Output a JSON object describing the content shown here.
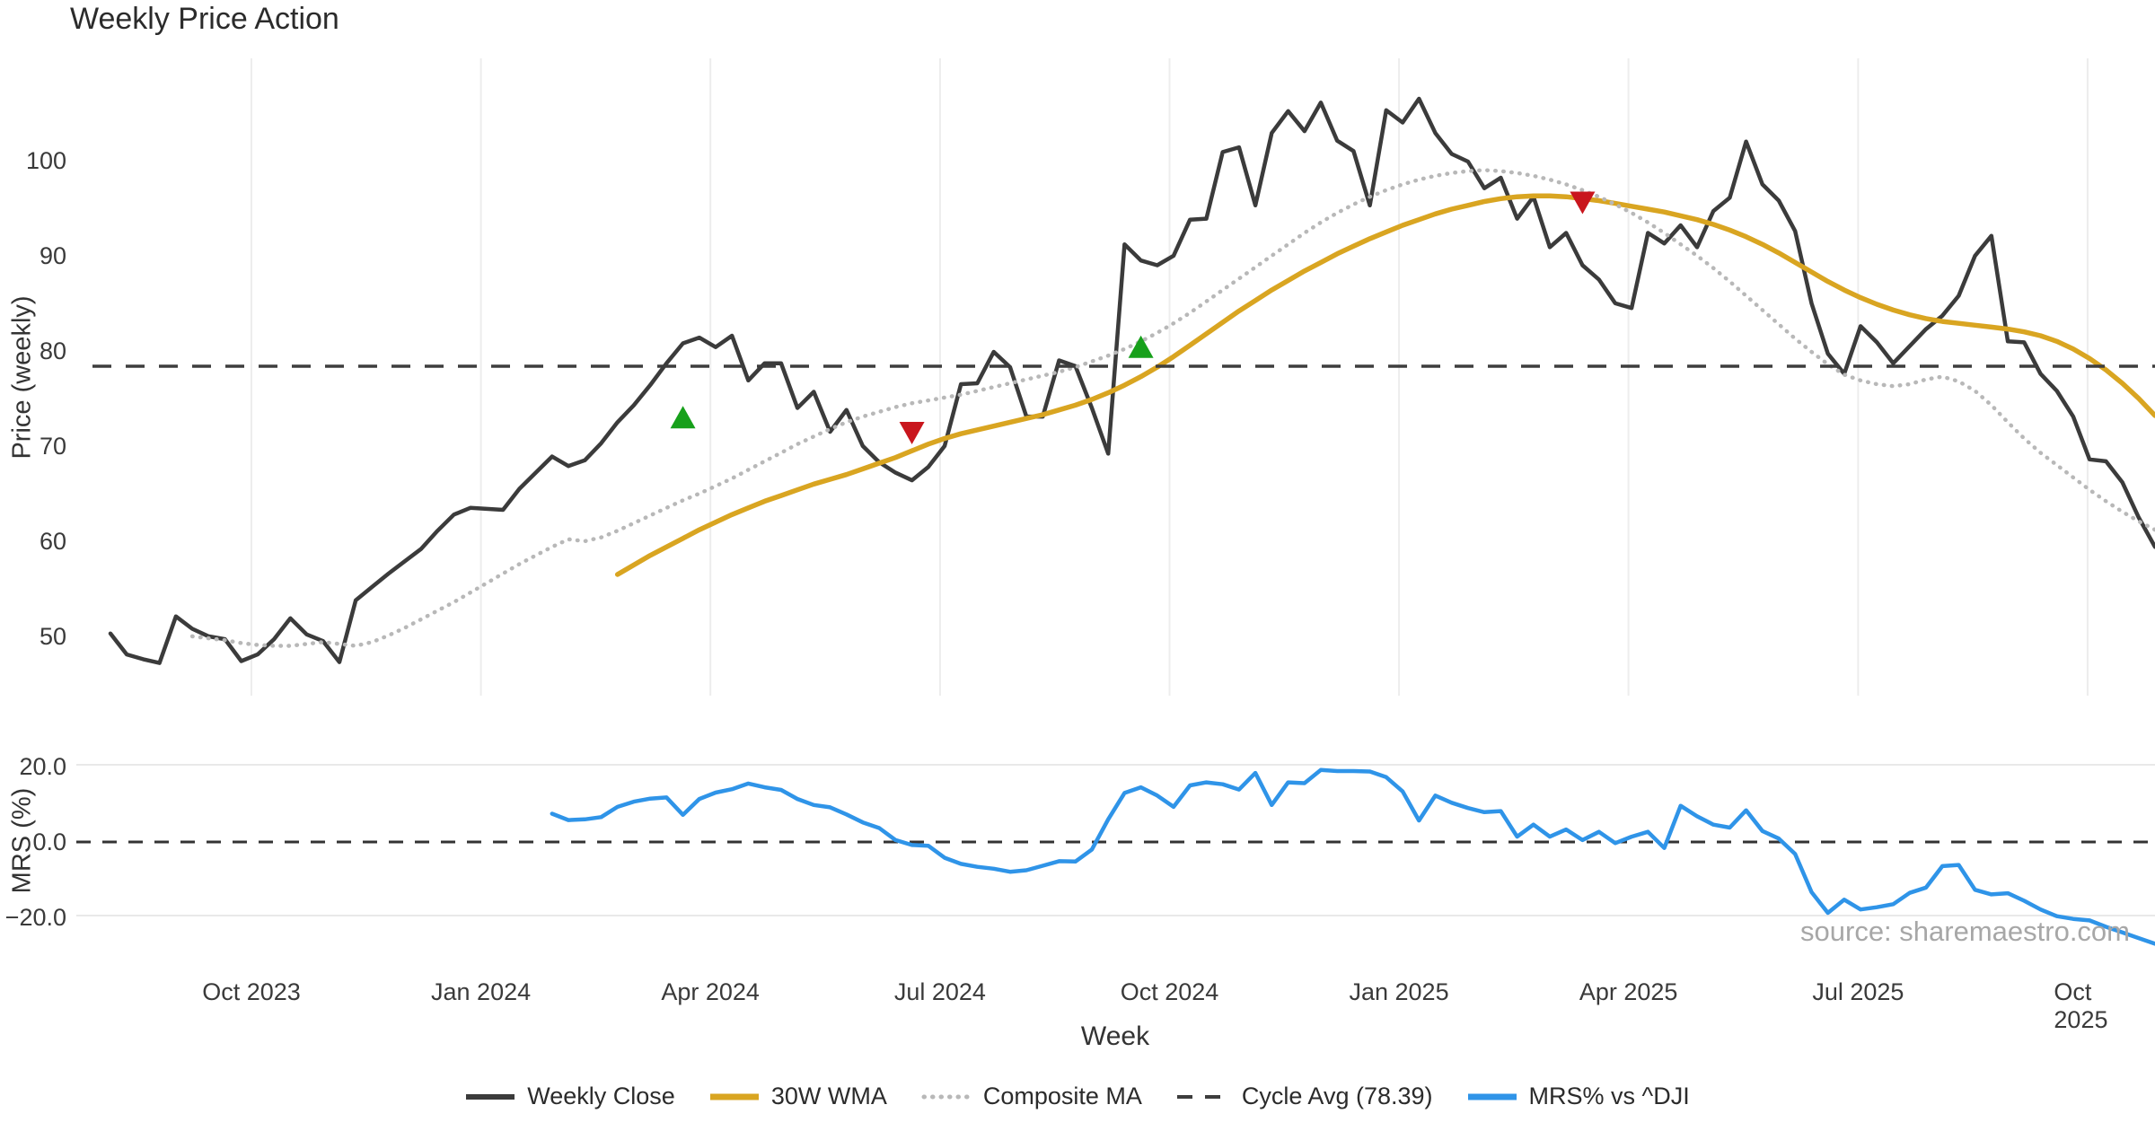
{
  "title": "Weekly Price Action",
  "source_note": "source: sharemaestro.com",
  "colors": {
    "close": "#3b3b3b",
    "wma": "#d9a521",
    "composite": "#b8b8b8",
    "cycle_avg": "#3d3d3d",
    "mrs": "#2f94e8",
    "buy_marker": "#17a01b",
    "sell_marker": "#c9161d",
    "gridline": "#ededed",
    "zero_line": "#333333"
  },
  "legend": {
    "items": [
      {
        "label": "Weekly Close",
        "swatch": "solid-dark"
      },
      {
        "label": "30W WMA",
        "swatch": "solid-gold"
      },
      {
        "label": "Composite MA",
        "swatch": "dotted-gray"
      },
      {
        "label": "Cycle Avg (78.39)",
        "swatch": "dashed-dark"
      },
      {
        "label": "MRS% vs ^DJI",
        "swatch": "solid-blue"
      }
    ]
  },
  "chart_data": {
    "type": "line",
    "title": "Weekly Price Action",
    "xlabel": "Week",
    "x_unit": "week_index",
    "x_ticks": [
      {
        "label": "Oct 2023",
        "index": 8.62
      },
      {
        "label": "Jan 2024",
        "index": 22.65
      },
      {
        "label": "Apr 2024",
        "index": 36.68
      },
      {
        "label": "Jul 2024",
        "index": 50.72
      },
      {
        "label": "Oct 2024",
        "index": 64.75
      },
      {
        "label": "Jan 2025",
        "index": 78.78
      },
      {
        "label": "Apr 2025",
        "index": 92.81
      },
      {
        "label": "Jul 2025",
        "index": 106.85
      },
      {
        "label": "Oct 2025",
        "index": 120.88
      }
    ],
    "panels": [
      {
        "name": "price",
        "ylabel": "Price (weekly)",
        "ylim": [
          22,
          110
        ],
        "y_ticks": [
          {
            "v": 50,
            "label": "50"
          },
          {
            "v": 60,
            "label": "60"
          },
          {
            "v": 70,
            "label": "70"
          },
          {
            "v": 80,
            "label": "80"
          },
          {
            "v": 90,
            "label": "90"
          },
          {
            "v": 100,
            "label": "100"
          }
        ],
        "grid": "vertical-only"
      },
      {
        "name": "mrs",
        "ylabel": "MRS (%)",
        "ylim": [
          -28,
          24
        ],
        "y_ticks": [
          {
            "v": 20,
            "label": "20.0"
          },
          {
            "v": 0,
            "label": "0.0"
          },
          {
            "v": -20,
            "label": "−20.0"
          }
        ],
        "grid": "horizontal-light",
        "zero_line_dashed": true
      }
    ],
    "cycle_avg": 78.39,
    "series": [
      {
        "name": "Weekly Close",
        "panel": 0,
        "style": "solid",
        "width": 4.5,
        "color_key": "close",
        "start_index": 0,
        "values": [
          50.3,
          48.1,
          47.6,
          47.2,
          52.1,
          50.8,
          50.0,
          49.7,
          47.4,
          48.1,
          49.7,
          51.9,
          50.2,
          49.5,
          47.3,
          53.8,
          55.2,
          56.6,
          57.9,
          59.2,
          61.1,
          62.8,
          63.5,
          63.4,
          63.3,
          65.5,
          67.2,
          68.9,
          67.9,
          68.5,
          70.3,
          72.5,
          74.3,
          76.4,
          78.7,
          80.8,
          81.4,
          80.4,
          81.6,
          76.9,
          78.7,
          78.7,
          74.0,
          75.7,
          71.5,
          73.8,
          70.0,
          68.3,
          67.2,
          66.4,
          67.8,
          70.0,
          76.5,
          76.6,
          79.9,
          78.3,
          73.1,
          73.1,
          79.0,
          78.4,
          74.0,
          69.2,
          91.2,
          89.5,
          89.0,
          90.0,
          93.8,
          93.9,
          100.9,
          101.4,
          95.3,
          102.9,
          105.2,
          103.1,
          106.1,
          102.1,
          101.0,
          95.3,
          105.3,
          104.0,
          106.5,
          102.9,
          100.7,
          99.9,
          97.1,
          98.2,
          93.9,
          96.2,
          90.9,
          92.4,
          89.0,
          87.5,
          85.0,
          84.5,
          92.4,
          91.3,
          93.2,
          90.9,
          94.7,
          96.1,
          102.0,
          97.5,
          95.8,
          92.6,
          85.0,
          79.7,
          77.6,
          82.6,
          80.9,
          78.7,
          80.5,
          82.3,
          83.7,
          85.8,
          90.0,
          92.1,
          81.0,
          80.9,
          77.6,
          75.8,
          73.1,
          68.6,
          68.4,
          66.2,
          62.5,
          59.4
        ]
      },
      {
        "name": "30W WMA",
        "panel": 0,
        "style": "solid",
        "width": 5.5,
        "color_key": "wma",
        "start_index": 31,
        "values": [
          56.5,
          57.5,
          58.5,
          59.4,
          60.3,
          61.2,
          62.0,
          62.8,
          63.5,
          64.2,
          64.8,
          65.4,
          66.0,
          66.5,
          67.0,
          67.6,
          68.2,
          68.8,
          69.5,
          70.2,
          70.8,
          71.3,
          71.7,
          72.1,
          72.5,
          72.9,
          73.3,
          73.8,
          74.3,
          74.9,
          75.6,
          76.4,
          77.3,
          78.3,
          79.4,
          80.6,
          81.8,
          83.0,
          84.2,
          85.3,
          86.4,
          87.4,
          88.4,
          89.3,
          90.2,
          91.0,
          91.8,
          92.5,
          93.2,
          93.8,
          94.4,
          94.9,
          95.3,
          95.7,
          96.0,
          96.2,
          96.3,
          96.3,
          96.2,
          96.0,
          95.8,
          95.5,
          95.2,
          94.9,
          94.6,
          94.2,
          93.8,
          93.3,
          92.7,
          92.0,
          91.2,
          90.3,
          89.3,
          88.3,
          87.3,
          86.4,
          85.6,
          84.9,
          84.3,
          83.8,
          83.4,
          83.1,
          82.9,
          82.7,
          82.5,
          82.3,
          82.0,
          81.6,
          81.0,
          80.2,
          79.2,
          78.0,
          76.6,
          75.0,
          73.2
        ]
      },
      {
        "name": "Composite MA",
        "panel": 0,
        "style": "dotted",
        "width": 4.5,
        "color_key": "composite",
        "start_index": 5,
        "values": [
          50.0,
          49.8,
          49.6,
          49.3,
          49.1,
          49.0,
          49.0,
          49.2,
          49.4,
          49.2,
          49.0,
          49.4,
          50.1,
          50.9,
          51.8,
          52.7,
          53.6,
          54.6,
          55.6,
          56.6,
          57.6,
          58.5,
          59.4,
          60.2,
          60.0,
          60.4,
          61.1,
          61.9,
          62.7,
          63.5,
          64.3,
          65.0,
          65.8,
          66.6,
          67.5,
          68.4,
          69.3,
          70.2,
          71.0,
          71.8,
          72.5,
          73.1,
          73.6,
          74.1,
          74.5,
          74.8,
          75.1,
          75.4,
          75.8,
          76.2,
          76.6,
          77.0,
          77.4,
          77.8,
          78.3,
          78.9,
          79.5,
          80.2,
          81.0,
          81.9,
          82.9,
          84.0,
          85.2,
          86.4,
          87.6,
          88.8,
          90.0,
          91.2,
          92.4,
          93.5,
          94.5,
          95.4,
          96.2,
          96.9,
          97.5,
          98.0,
          98.4,
          98.7,
          98.9,
          99.0,
          98.9,
          98.7,
          98.4,
          98.0,
          97.5,
          96.9,
          96.2,
          95.4,
          94.5,
          93.5,
          92.4,
          91.2,
          90.0,
          88.7,
          87.3,
          85.8,
          84.3,
          82.8,
          81.3,
          79.9,
          78.6,
          77.5,
          76.9,
          76.5,
          76.3,
          76.5,
          77.0,
          77.3,
          76.8,
          75.8,
          74.3,
          72.5,
          70.8,
          69.3,
          68.0,
          66.7,
          65.4,
          64.2,
          63.1,
          62.1,
          61.2
        ]
      },
      {
        "name": "Cycle Avg (78.39)",
        "panel": 0,
        "style": "dashed",
        "width": 3.5,
        "color_key": "cycle_avg",
        "constant": 78.39
      },
      {
        "name": "MRS% vs ^DJI",
        "panel": 1,
        "style": "solid",
        "width": 4.5,
        "color_key": "mrs",
        "start_index": 27,
        "values": [
          7.5,
          5.8,
          6.0,
          6.6,
          9.3,
          10.7,
          11.5,
          11.8,
          7.2,
          11.4,
          13.1,
          14.0,
          15.5,
          14.5,
          13.8,
          11.4,
          9.8,
          9.2,
          7.3,
          5.2,
          3.7,
          0.5,
          -0.8,
          -1.0,
          -4.2,
          -5.8,
          -6.6,
          -7.1,
          -7.9,
          -7.5,
          -6.3,
          -5.1,
          -5.2,
          -2.0,
          6.0,
          13.0,
          14.5,
          12.3,
          9.3,
          15.0,
          15.8,
          15.3,
          13.9,
          18.3,
          9.8,
          15.8,
          15.6,
          19.1,
          18.8,
          18.8,
          18.7,
          17.2,
          13.4,
          5.7,
          12.3,
          10.4,
          9.0,
          7.9,
          8.2,
          1.4,
          4.6,
          1.4,
          3.3,
          0.5,
          2.7,
          -0.3,
          1.4,
          2.7,
          -1.6,
          9.6,
          6.8,
          4.6,
          3.8,
          8.4,
          2.9,
          0.9,
          -3.2,
          -13.3,
          -18.8,
          -15.3,
          -17.9,
          -17.3,
          -16.5,
          -13.5,
          -12.1,
          -6.4,
          -6.1,
          -12.7,
          -13.9,
          -13.6,
          -15.6,
          -17.9,
          -19.7,
          -20.4,
          -20.8,
          -22.5,
          -24.0,
          -25.5,
          -27.0
        ]
      }
    ],
    "markers": [
      {
        "kind": "buy",
        "index": 35,
        "value": 72.9
      },
      {
        "kind": "sell",
        "index": 49,
        "value": 71.5
      },
      {
        "kind": "buy",
        "index": 63,
        "value": 80.3
      },
      {
        "kind": "sell",
        "index": 90,
        "value": 95.7
      }
    ]
  }
}
